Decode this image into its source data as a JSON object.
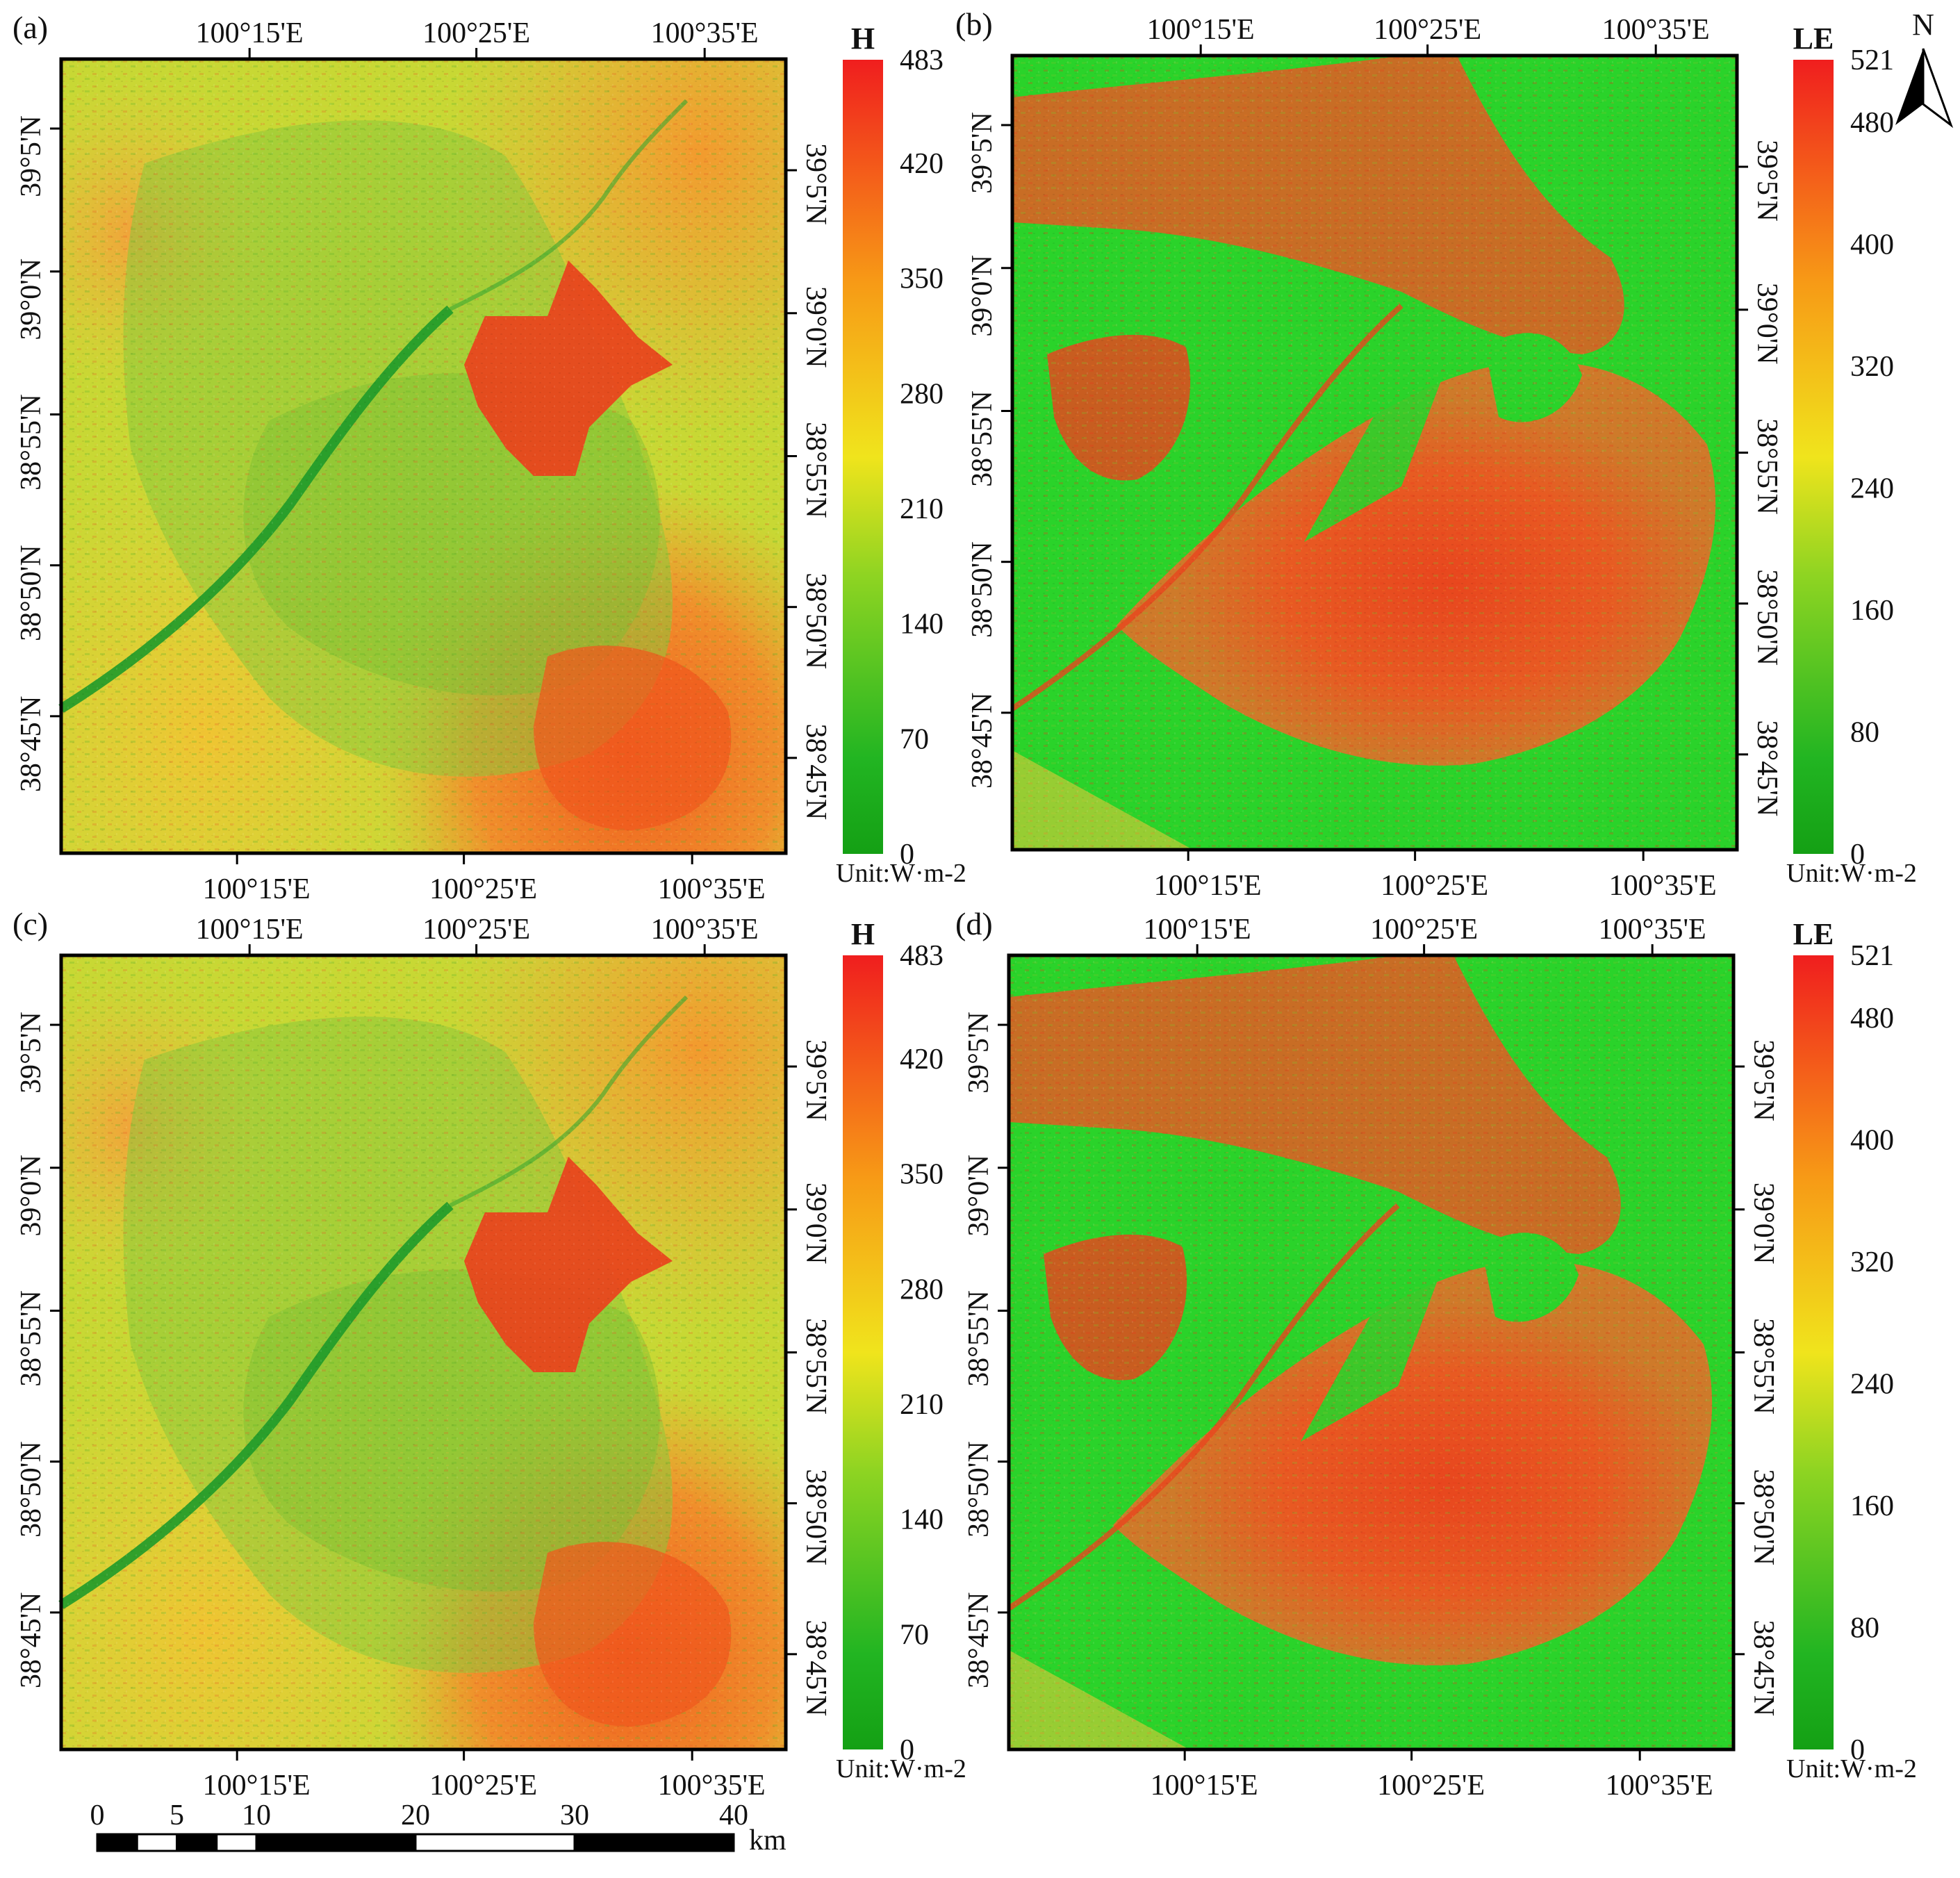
{
  "figure": {
    "panels": [
      {
        "label": "(a)",
        "variable": "H",
        "legend_max": 483,
        "ticks": [
          "0",
          "70",
          "140",
          "210",
          "280",
          "350",
          "420",
          "483"
        ],
        "tick_values": [
          0,
          70,
          140,
          210,
          280,
          350,
          420,
          483
        ],
        "unit": "Unit:W·m-2"
      },
      {
        "label": "(b)",
        "variable": "LE",
        "legend_max": 521,
        "ticks": [
          "0",
          "80",
          "160",
          "240",
          "320",
          "400",
          "480",
          "521"
        ],
        "tick_values": [
          0,
          80,
          160,
          240,
          320,
          400,
          480,
          521
        ],
        "unit": "Unit:W·m-2"
      },
      {
        "label": "(c)",
        "variable": "H",
        "legend_max": 483,
        "ticks": [
          "0",
          "70",
          "140",
          "210",
          "280",
          "350",
          "420",
          "483"
        ],
        "tick_values": [
          0,
          70,
          140,
          210,
          280,
          350,
          420,
          483
        ],
        "unit": "Unit:W·m-2"
      },
      {
        "label": "(d)",
        "variable": "LE",
        "legend_max": 521,
        "ticks": [
          "0",
          "80",
          "160",
          "240",
          "320",
          "400",
          "480",
          "521"
        ],
        "tick_values": [
          0,
          80,
          160,
          240,
          320,
          400,
          480,
          521
        ],
        "unit": "Unit:W·m-2"
      }
    ],
    "lon_labels": [
      "100°15'E",
      "100°25'E",
      "100°35'E"
    ],
    "lat_labels": [
      "39°5'N",
      "39°0'N",
      "38°55'N",
      "38°50'N",
      "38°45'N"
    ],
    "north_arrow": "N",
    "scalebar": {
      "ticks": [
        "0",
        "5",
        "10",
        "20",
        "30",
        "40"
      ],
      "unit": "km"
    },
    "colors": {
      "low": "#1aa81a",
      "mid": "#f2e61a",
      "high": "#f01e1e",
      "frame": "#000000"
    }
  }
}
